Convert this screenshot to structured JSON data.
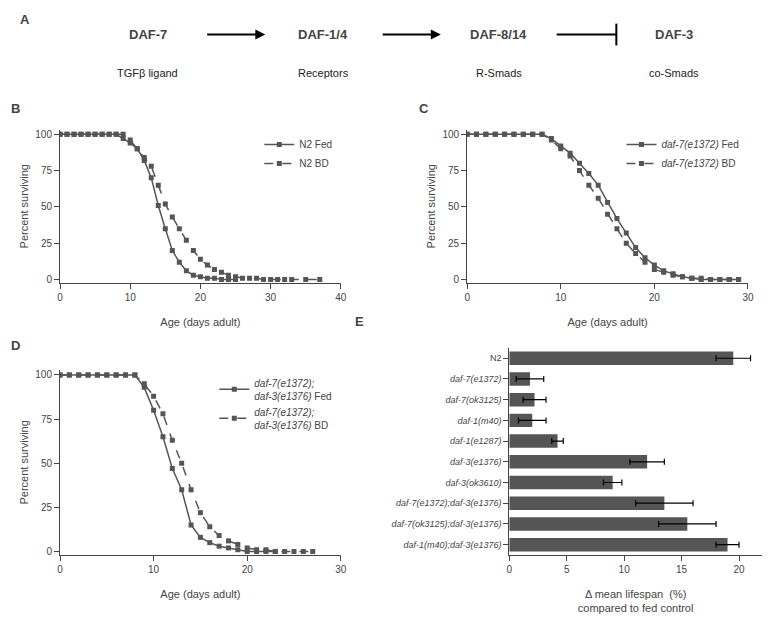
{
  "chart_data": [
    {
      "type": "diagram",
      "title": "A",
      "categories": [
        "DAF-7",
        "DAF-1/4",
        "DAF-8/14",
        "DAF-3"
      ],
      "annotations": [
        "TGFβ ligand",
        "Receptors",
        "R-Smads",
        "co-Smads"
      ]
    },
    {
      "type": "line",
      "title": "B",
      "xlabel": "Age (days adult)",
      "ylabel": "Percent surviving",
      "xlim": [
        0,
        40
      ],
      "ylim": [
        -2,
        103
      ],
      "xticks": [
        0,
        10,
        20,
        30,
        40
      ],
      "yticks": [
        0,
        25,
        50,
        75,
        100
      ],
      "grid": false,
      "legend": "upper right",
      "series": [
        {
          "name": "N2 Fed",
          "color": "#555555",
          "marker": "square",
          "line_style": "solid",
          "x": [
            0,
            1,
            2,
            3,
            4,
            5,
            6,
            7,
            8,
            9,
            10,
            11,
            12,
            13,
            14,
            15,
            16,
            17,
            18,
            19,
            20,
            21,
            22,
            23,
            24,
            25
          ],
          "values": [
            100,
            100,
            100,
            100,
            100,
            100,
            100,
            100,
            100,
            97,
            94,
            90,
            82,
            70,
            51,
            35,
            20,
            12,
            6,
            3,
            2,
            1,
            1,
            0,
            0,
            0
          ]
        },
        {
          "name": "N2 BD",
          "color": "#555555",
          "marker": "square",
          "line_style": "dash",
          "x": [
            0,
            1,
            2,
            3,
            4,
            5,
            6,
            7,
            8,
            9,
            10,
            11,
            12,
            13,
            14,
            15,
            16,
            17,
            18,
            19,
            20,
            21,
            22,
            23,
            24,
            25,
            26,
            27,
            28,
            29,
            30,
            31,
            32,
            33,
            35,
            37
          ],
          "values": [
            100,
            100,
            100,
            100,
            100,
            100,
            100,
            100,
            100,
            100,
            96,
            90,
            84,
            78,
            65,
            52,
            43,
            35,
            27,
            20,
            14,
            10,
            7,
            5,
            3,
            2,
            1,
            1,
            1,
            0,
            0,
            0,
            0,
            0,
            0,
            0
          ]
        }
      ]
    },
    {
      "type": "line",
      "title": "C",
      "xlabel": "Age (days adult)",
      "ylabel": "Percent surviving",
      "xlim": [
        0,
        30
      ],
      "ylim": [
        -2,
        103
      ],
      "xticks": [
        0,
        10,
        20,
        30
      ],
      "yticks": [
        0,
        25,
        50,
        75,
        100
      ],
      "grid": false,
      "legend": "upper right",
      "series": [
        {
          "name": "daf-7(e1372) Fed",
          "color": "#555555",
          "marker": "square",
          "line_style": "solid",
          "x": [
            0,
            1,
            2,
            3,
            4,
            5,
            6,
            7,
            8,
            9,
            10,
            11,
            12,
            13,
            14,
            15,
            16,
            17,
            18,
            19,
            20,
            21,
            22,
            23,
            24,
            25,
            26,
            27,
            28,
            29
          ],
          "values": [
            100,
            100,
            100,
            100,
            100,
            100,
            100,
            100,
            100,
            97,
            92,
            87,
            80,
            73,
            65,
            53,
            42,
            32,
            22,
            15,
            10,
            6,
            4,
            2,
            1,
            0,
            0,
            0,
            0,
            0
          ]
        },
        {
          "name": "daf-7(e1372) BD",
          "color": "#555555",
          "marker": "square",
          "line_style": "dash",
          "x": [
            0,
            1,
            2,
            3,
            4,
            5,
            6,
            7,
            8,
            9,
            10,
            11,
            12,
            13,
            14,
            15,
            16,
            17,
            18,
            19,
            20,
            21,
            22,
            23,
            24,
            25,
            26,
            27,
            28,
            29
          ],
          "values": [
            100,
            100,
            100,
            100,
            100,
            100,
            100,
            100,
            100,
            96,
            90,
            85,
            75,
            65,
            56,
            45,
            35,
            25,
            18,
            12,
            7,
            5,
            3,
            2,
            1,
            1,
            0,
            0,
            0,
            0
          ]
        }
      ]
    },
    {
      "type": "line",
      "title": "D",
      "xlabel": "Age (days adult)",
      "ylabel": "Percent surviving",
      "xlim": [
        0,
        30
      ],
      "ylim": [
        -2,
        103
      ],
      "xticks": [
        0,
        10,
        20,
        30
      ],
      "yticks": [
        0,
        25,
        50,
        75,
        100
      ],
      "grid": false,
      "legend": "upper right",
      "series": [
        {
          "name": "daf-7(e1372);\ndaf-3(e1376) Fed",
          "color": "#555555",
          "marker": "square",
          "line_style": "solid",
          "x": [
            0,
            1,
            2,
            3,
            4,
            5,
            6,
            7,
            8,
            9,
            10,
            11,
            12,
            13,
            14,
            15,
            16,
            17,
            18,
            19,
            20,
            21,
            22,
            23
          ],
          "values": [
            100,
            100,
            100,
            100,
            100,
            100,
            100,
            100,
            100,
            93,
            80,
            65,
            47,
            35,
            15,
            8,
            5,
            3,
            2,
            1,
            0,
            0,
            0,
            0
          ]
        },
        {
          "name": "daf-7(e1372);\ndaf-3(e1376) BD",
          "color": "#555555",
          "marker": "square",
          "line_style": "dash",
          "x": [
            0,
            1,
            2,
            3,
            4,
            5,
            6,
            7,
            8,
            9,
            10,
            11,
            12,
            13,
            14,
            15,
            16,
            17,
            18,
            19,
            20,
            21,
            22,
            23,
            24,
            25,
            26,
            27
          ],
          "values": [
            100,
            100,
            100,
            100,
            100,
            100,
            100,
            100,
            100,
            95,
            88,
            78,
            63,
            50,
            35,
            22,
            14,
            9,
            6,
            4,
            2,
            1,
            1,
            0,
            0,
            0,
            0,
            0
          ]
        }
      ]
    },
    {
      "type": "bar",
      "title": "E",
      "orientation": "horizontal",
      "xlabel": "Δ mean lifespan  (%)\ncompared to fed control",
      "categories": [
        "N2",
        "daf-7(e1372)",
        "daf-7(ok3125)",
        "daf-1(m40)",
        "daf-1(e1287)",
        "daf-3(e1376)",
        "daf-3(ok3610)",
        "daf-7(e1372);daf-3(e1376)",
        "daf-7(ok3125);daf-3(e1376)",
        "daf-1(m40);daf-3(e1376)"
      ],
      "values": [
        19.5,
        1.8,
        2.2,
        2.0,
        4.2,
        12.0,
        9.0,
        13.5,
        15.5,
        19.0
      ],
      "errors": [
        1.5,
        1.2,
        1.0,
        1.2,
        0.5,
        1.5,
        0.8,
        2.5,
        2.5,
        1.0
      ],
      "color": "#555555",
      "xlim": [
        0,
        22
      ],
      "xticks": [
        0,
        5,
        10,
        15,
        20
      ],
      "grid": false
    }
  ]
}
